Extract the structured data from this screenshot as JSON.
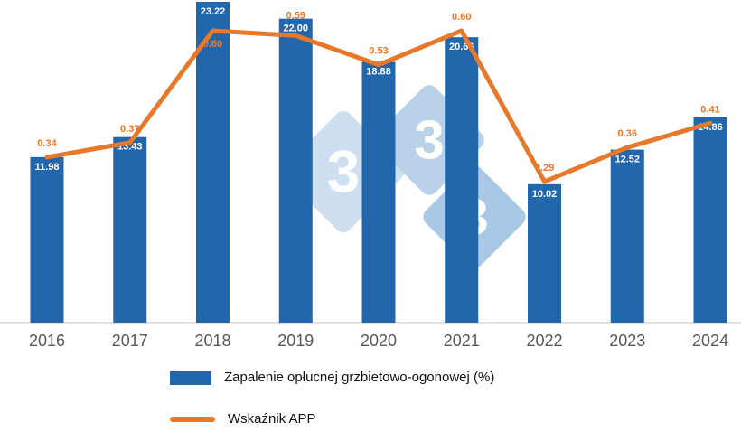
{
  "chart_data": {
    "type": "bar",
    "subtype": "bar-and-line-combo",
    "categories": [
      "2016",
      "2017",
      "2018",
      "2019",
      "2020",
      "2021",
      "2022",
      "2023",
      "2024"
    ],
    "series": [
      {
        "name": "Zapalenie opłucnej grzbietowo-ogonowej (%)",
        "type": "bar",
        "color": "#2267ac",
        "label_color": "#ffffff",
        "values": [
          11.98,
          13.43,
          23.22,
          22.0,
          18.88,
          20.66,
          10.02,
          12.52,
          14.86
        ]
      },
      {
        "name": "Wskaźnik APP",
        "type": "line",
        "color": "#e8782a",
        "label_color": "#e8782a",
        "values": [
          0.34,
          0.37,
          0.6,
          0.59,
          0.53,
          0.6,
          0.29,
          0.36,
          0.41
        ]
      }
    ],
    "title": "",
    "xlabel": "",
    "ylabel": "",
    "ylim": [
      0,
      23.5
    ],
    "y2lim": [
      0,
      0.66
    ],
    "grid": false,
    "legend_position": "bottom",
    "axis_label_color": "#595959",
    "baseline_color": "#d9d9d9"
  },
  "watermark": {
    "name": "333-logo",
    "digits": [
      "3",
      "3",
      "3"
    ],
    "tile_colors": [
      "#cddff0",
      "#b9d2ea",
      "#a8c8e5"
    ],
    "digit_color": "#ffffff"
  }
}
